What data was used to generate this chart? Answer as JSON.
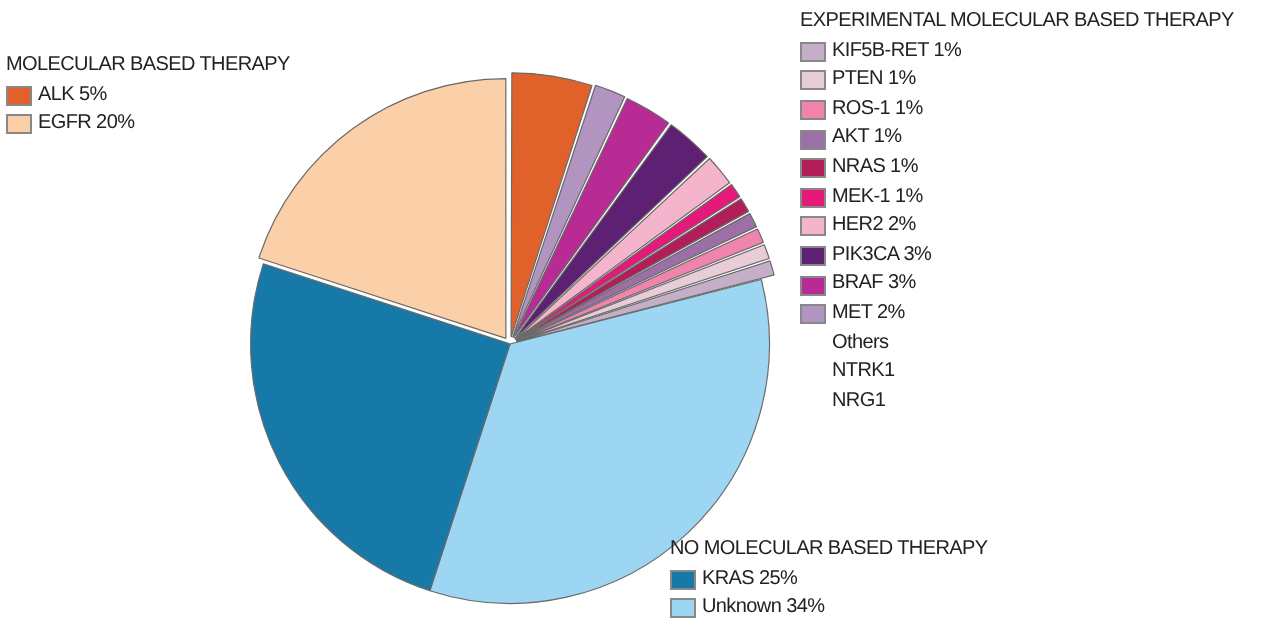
{
  "chart_data": {
    "type": "pie",
    "categories": [
      "ALK 5%",
      "MET 2%",
      "BRAF 3%",
      "PIK3CA 3%",
      "HER2 2%",
      "MEK-1 1%",
      "NRAS 1%",
      "AKT 1%",
      "ROS-1 1%",
      "PTEN 1%",
      "KIF5B-RET 1%",
      "Unknown 34%",
      "KRAS 25%",
      "EGFR 20%"
    ],
    "values": [
      5,
      2,
      3,
      3,
      2,
      1,
      1,
      1,
      1,
      1,
      1,
      34,
      25,
      20
    ],
    "colors": [
      "#e0622a",
      "#b294c0",
      "#b82a94",
      "#5d2072",
      "#f4b4cc",
      "#e5197a",
      "#b21e5a",
      "#9c6fa6",
      "#ef84ac",
      "#e8ccd8",
      "#c4aec8",
      "#9dd6f2",
      "#1679a8",
      "#fbcfa8"
    ],
    "legend": "top left",
    "annotations": [
      "MOLECULAR BASED THERAPY",
      "EXPERIMENTAL MOLECULAR BASED THERAPY",
      "Others",
      "NTRK1",
      "NRG1",
      "NO MOLECULAR BASED THERAPY"
    ]
  }
}
